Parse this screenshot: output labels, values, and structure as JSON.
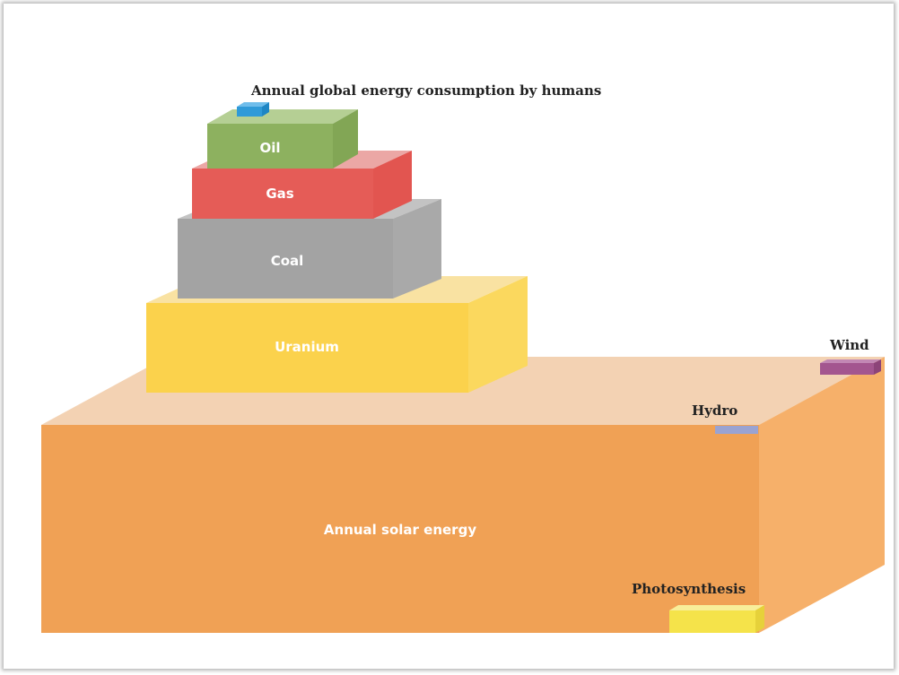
{
  "diagram": {
    "title": "Annual global energy consumption by humans",
    "blocks": {
      "solar": {
        "label": "Annual solar energy",
        "color": "#f0a155"
      },
      "uranium": {
        "label": "Uranium",
        "color": "#fbd24c"
      },
      "coal": {
        "label": "Coal",
        "color": "#a3a3a3"
      },
      "gas": {
        "label": "Gas",
        "color": "#e55c57"
      },
      "oil": {
        "label": "Oil",
        "color": "#8db15f"
      },
      "consumption": {
        "color": "#2f9ad8"
      }
    },
    "markers": {
      "wind": {
        "label": "Wind",
        "color": "#a3568f"
      },
      "hydro": {
        "label": "Hydro",
        "color": "#9aa3d2"
      },
      "photosynthesis": {
        "label": "Photosynthesis",
        "color": "#f5e34a"
      }
    }
  }
}
